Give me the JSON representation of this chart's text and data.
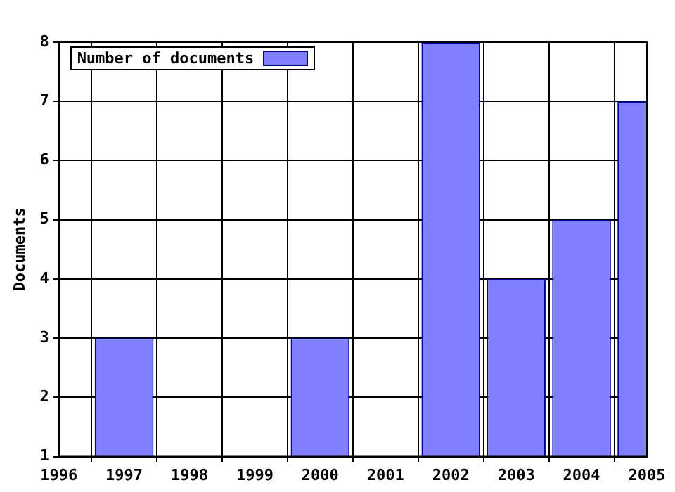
{
  "chart_data": {
    "type": "bar",
    "ylabel": "Documents",
    "x": [
      1997,
      2000,
      2002,
      2003,
      2004,
      2005
    ],
    "series": [
      {
        "name": "Number of documents",
        "color": "#8080ff",
        "values": [
          3,
          3,
          8,
          4,
          5,
          7
        ]
      }
    ],
    "xlim": [
      1996,
      2005
    ],
    "xticks": [
      1996,
      1997,
      1998,
      1999,
      2000,
      2001,
      2002,
      2003,
      2004,
      2005
    ],
    "ylim": [
      1,
      8
    ],
    "yticks": [
      1,
      2,
      3,
      4,
      5,
      6,
      7,
      8
    ],
    "grid": true,
    "legend": "top left"
  }
}
